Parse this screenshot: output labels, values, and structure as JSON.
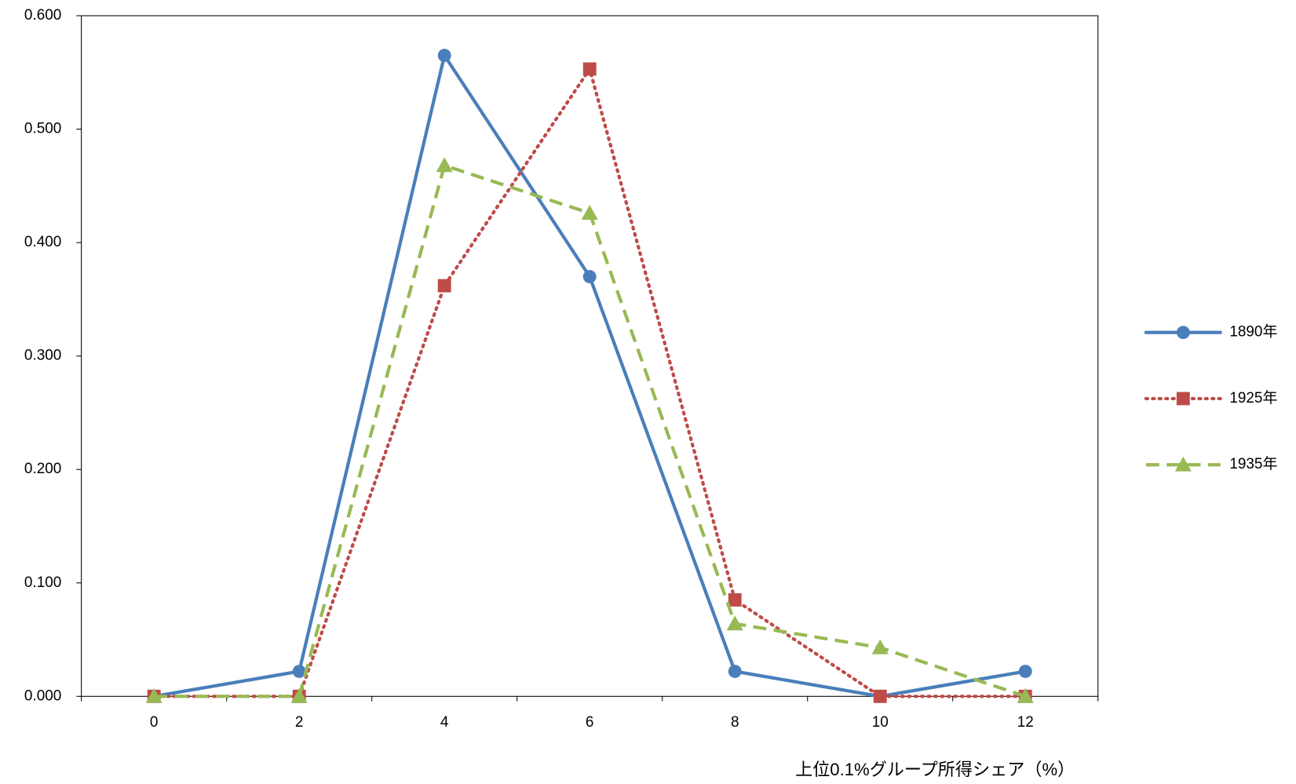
{
  "chart_data": {
    "type": "line",
    "x_label": "上位0.1%グループ所得シェア（%）",
    "categories": [
      "0",
      "2",
      "4",
      "6",
      "8",
      "10",
      "12"
    ],
    "series": [
      {
        "name": "1890年",
        "color": "#4a7ebb",
        "dash": "solid",
        "marker": "circle",
        "values": [
          0,
          0.022,
          0.565,
          0.37,
          0.022,
          0,
          0.022
        ]
      },
      {
        "name": "1925年",
        "color": "#be4b48",
        "dash": "dot",
        "marker": "square",
        "values": [
          0,
          0,
          0.362,
          0.553,
          0.085,
          0,
          0
        ]
      },
      {
        "name": "1935年",
        "color": "#98b954",
        "dash": "dash",
        "marker": "triangle",
        "values": [
          0,
          0,
          0.468,
          0.426,
          0.064,
          0.043,
          0
        ]
      }
    ],
    "ylim": [
      0,
      0.6
    ],
    "yticks": [
      {
        "value": 0,
        "label": "0.000"
      },
      {
        "value": 0.1,
        "label": "0.100"
      },
      {
        "value": 0.2,
        "label": "0.200"
      },
      {
        "value": 0.3,
        "label": "0.300"
      },
      {
        "value": 0.4,
        "label": "0.400"
      },
      {
        "value": 0.5,
        "label": "0.500"
      },
      {
        "value": 0.6,
        "label": "0.600"
      }
    ],
    "grid": false,
    "legend": "right"
  }
}
